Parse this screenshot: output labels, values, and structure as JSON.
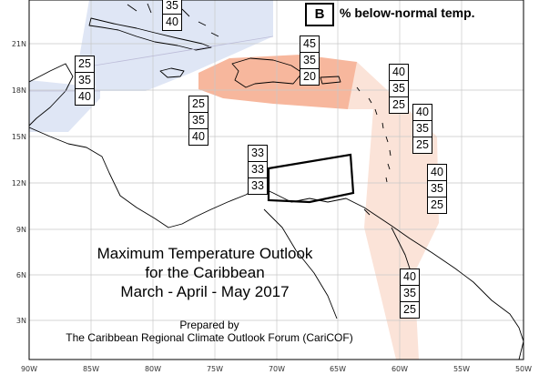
{
  "title": {
    "line1": "Maximum Temperature Outlook",
    "line2": "for the Caribbean",
    "line3": "March - April - May 2017"
  },
  "credit": {
    "line1": "Prepared by",
    "line2": "The Caribbean Regional Climate Outlook Forum (CariCOF)"
  },
  "legend": {
    "key": "B",
    "label": "% below-normal temp."
  },
  "axes": {
    "lat_labels": [
      "21N",
      "18N",
      "15N",
      "12N",
      "9N",
      "6N",
      "3N"
    ],
    "lon_labels": [
      "90W",
      "85W",
      "80W",
      "75W",
      "70W",
      "65W",
      "60W",
      "55W",
      "50W"
    ]
  },
  "colors": {
    "blue_zone": "#dfe6f5",
    "orange_zone": "#f7b79d",
    "light_orange_zone": "#fbe3d8",
    "land_outline": "#000000"
  },
  "probability_boxes": [
    {
      "id": "bahamas",
      "values": [
        "35",
        "40"
      ]
    },
    {
      "id": "yucatan",
      "values": [
        "25",
        "35",
        "40"
      ]
    },
    {
      "id": "western-caribbean",
      "values": [
        "25",
        "35",
        "40"
      ]
    },
    {
      "id": "hispaniola",
      "values": [
        "45",
        "35",
        "20"
      ]
    },
    {
      "id": "northern-lesser-antilles",
      "values": [
        "40",
        "35",
        "25"
      ]
    },
    {
      "id": "windward-islands",
      "values": [
        "40",
        "35",
        "25"
      ]
    },
    {
      "id": "barbados",
      "values": [
        "40",
        "35",
        "25"
      ]
    },
    {
      "id": "abc-islands",
      "values": [
        "33",
        "33",
        "33"
      ]
    },
    {
      "id": "guianas",
      "values": [
        "40",
        "35",
        "25"
      ]
    }
  ]
}
